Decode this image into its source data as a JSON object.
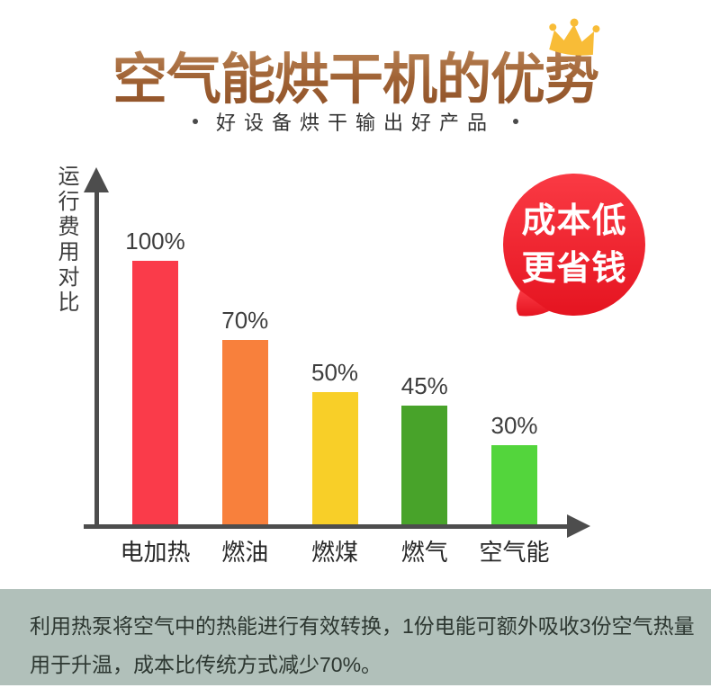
{
  "header": {
    "title": "空气能烘干机的优势",
    "subtitle": "好设备烘干输出好产品",
    "title_color_top": "#c39064",
    "title_color_bottom": "#8d4f26",
    "crown_color": "#f8bc37"
  },
  "badge": {
    "line1": "成本低",
    "line2": "更省钱",
    "color_top": "#fa3a44",
    "color_bottom": "#e51420"
  },
  "chart_data": {
    "type": "bar",
    "title": "",
    "xlabel": "",
    "ylabel": "运行费用对比",
    "categories": [
      "电加热",
      "燃油",
      "燃煤",
      "燃气",
      "空气能"
    ],
    "values": [
      100,
      70,
      50,
      45,
      30
    ],
    "value_labels": [
      "100%",
      "70%",
      "50%",
      "45%",
      "30%"
    ],
    "bar_colors": [
      "#fa3b4a",
      "#f8803c",
      "#f8cf28",
      "#48a32a",
      "#53d53c"
    ],
    "ylim": [
      0,
      110
    ],
    "grid": false,
    "legend": "none",
    "axis_color": "#4d4d4d"
  },
  "footer": {
    "line1": "利用热泵将空气中的热能进行有效转换，1份电能可额外吸收3份空气热量",
    "line2": "用于升温，成本比传统方式减少70%。",
    "bg_color": "#b1c0ba"
  }
}
